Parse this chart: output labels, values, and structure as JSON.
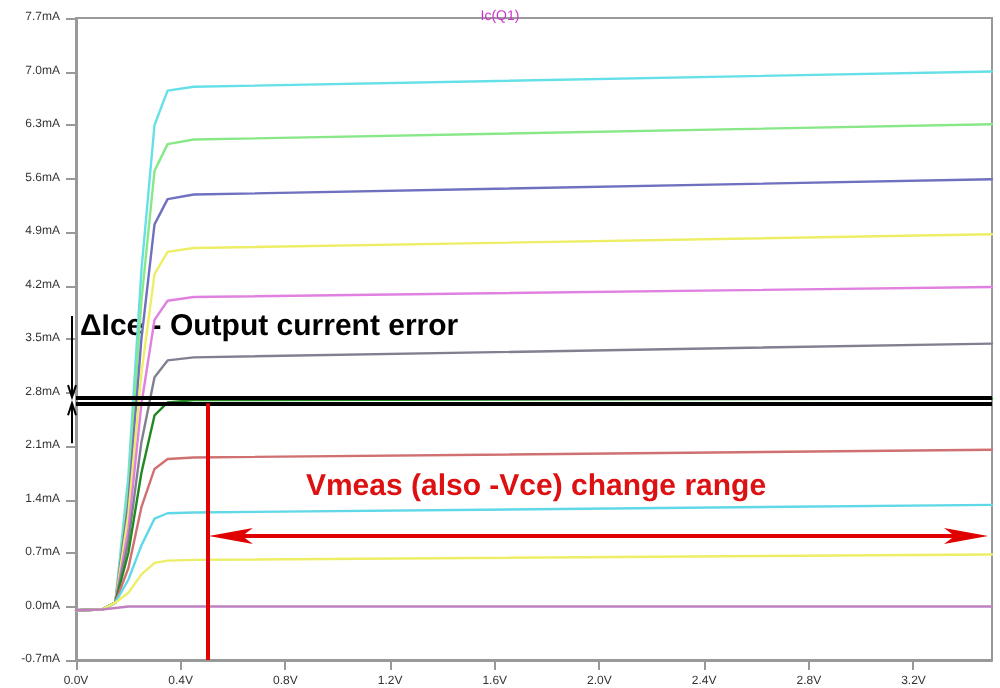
{
  "chart_data": {
    "type": "line",
    "title": "Ic(Q1)",
    "xlim": [
      0,
      3.5
    ],
    "xticks": [
      {
        "value": 0,
        "label": "0.0V"
      },
      {
        "value": 0.4,
        "label": "0.4V"
      },
      {
        "value": 0.8,
        "label": "0.8V"
      },
      {
        "value": 1.2,
        "label": "1.2V"
      },
      {
        "value": 1.6,
        "label": "1.6V"
      },
      {
        "value": 2.0,
        "label": "2.0V"
      },
      {
        "value": 2.4,
        "label": "2.4V"
      },
      {
        "value": 2.8,
        "label": "2.8V"
      },
      {
        "value": 3.2,
        "label": "3.2V"
      }
    ],
    "ylim": [
      -0.7,
      7.7
    ],
    "yticks": [
      {
        "value": -0.7,
        "label": "-0.7mA"
      },
      {
        "value": 0,
        "label": "0.0mA"
      },
      {
        "value": 0.7,
        "label": "0.7mA"
      },
      {
        "value": 1.4,
        "label": "1.4mA"
      },
      {
        "value": 2.1,
        "label": "2.1mA"
      },
      {
        "value": 2.8,
        "label": "2.8mA"
      },
      {
        "value": 3.5,
        "label": "3.5mA"
      },
      {
        "value": 4.2,
        "label": "4.2mA"
      },
      {
        "value": 4.9,
        "label": "4.9mA"
      },
      {
        "value": 5.6,
        "label": "5.6mA"
      },
      {
        "value": 6.3,
        "label": "6.3mA"
      },
      {
        "value": 7.0,
        "label": "7.0mA"
      },
      {
        "value": 7.7,
        "label": "7.7mA"
      }
    ],
    "grid": false,
    "marker": "none",
    "line_style": "solid",
    "x": [
      0,
      0.1,
      0.15,
      0.2,
      0.25,
      0.3,
      0.35,
      0.45,
      3.5
    ],
    "series": [
      {
        "color": "#66e0e8",
        "values": [
          -0.05,
          -0.04,
          0.05,
          1.7,
          4.4,
          6.3,
          6.75,
          6.8,
          7.0
        ]
      },
      {
        "color": "#88e888",
        "values": [
          -0.05,
          -0.04,
          0.05,
          1.5,
          4.0,
          5.7,
          6.05,
          6.11,
          6.31
        ]
      },
      {
        "color": "#7070c0",
        "values": [
          -0.05,
          -0.04,
          0.05,
          1.35,
          3.5,
          5.0,
          5.33,
          5.39,
          5.59
        ]
      },
      {
        "color": "#eeee66",
        "values": [
          -0.05,
          -0.04,
          0.05,
          1.2,
          3.05,
          4.35,
          4.64,
          4.69,
          4.87
        ]
      },
      {
        "color": "#e080e0",
        "values": [
          -0.05,
          -0.04,
          0.05,
          1.0,
          2.65,
          3.75,
          4.0,
          4.05,
          4.18
        ]
      },
      {
        "color": "#808090",
        "values": [
          -0.05,
          -0.04,
          0.05,
          0.85,
          2.15,
          3.0,
          3.22,
          3.26,
          3.44
        ]
      },
      {
        "color": "#228822",
        "values": [
          -0.05,
          -0.04,
          0.05,
          0.7,
          1.75,
          2.5,
          2.67,
          2.7,
          2.72
        ]
      },
      {
        "color": "#d07070",
        "values": [
          -0.05,
          -0.04,
          0.05,
          0.5,
          1.3,
          1.8,
          1.93,
          1.95,
          2.05
        ]
      },
      {
        "color": "#60d8e8",
        "values": [
          -0.05,
          -0.04,
          0.05,
          0.35,
          0.8,
          1.15,
          1.22,
          1.23,
          1.33
        ]
      },
      {
        "color": "#eeee66",
        "values": [
          -0.05,
          -0.04,
          0.05,
          0.18,
          0.42,
          0.57,
          0.6,
          0.61,
          0.68
        ]
      },
      {
        "color": "#c080c0",
        "values": [
          -0.05,
          -0.04,
          -0.02,
          0,
          0,
          0,
          0,
          0,
          0
        ]
      }
    ],
    "ref_lines": [
      {
        "axis": "y",
        "value": 2.74,
        "color": "#000000"
      },
      {
        "axis": "y",
        "value": 2.66,
        "color": "#000000"
      },
      {
        "axis": "x",
        "value": 0.5,
        "color": "#e00000"
      }
    ],
    "annotations": [
      "ΔIce - Output current error",
      "Vmeas (also -Vce) change range"
    ]
  }
}
